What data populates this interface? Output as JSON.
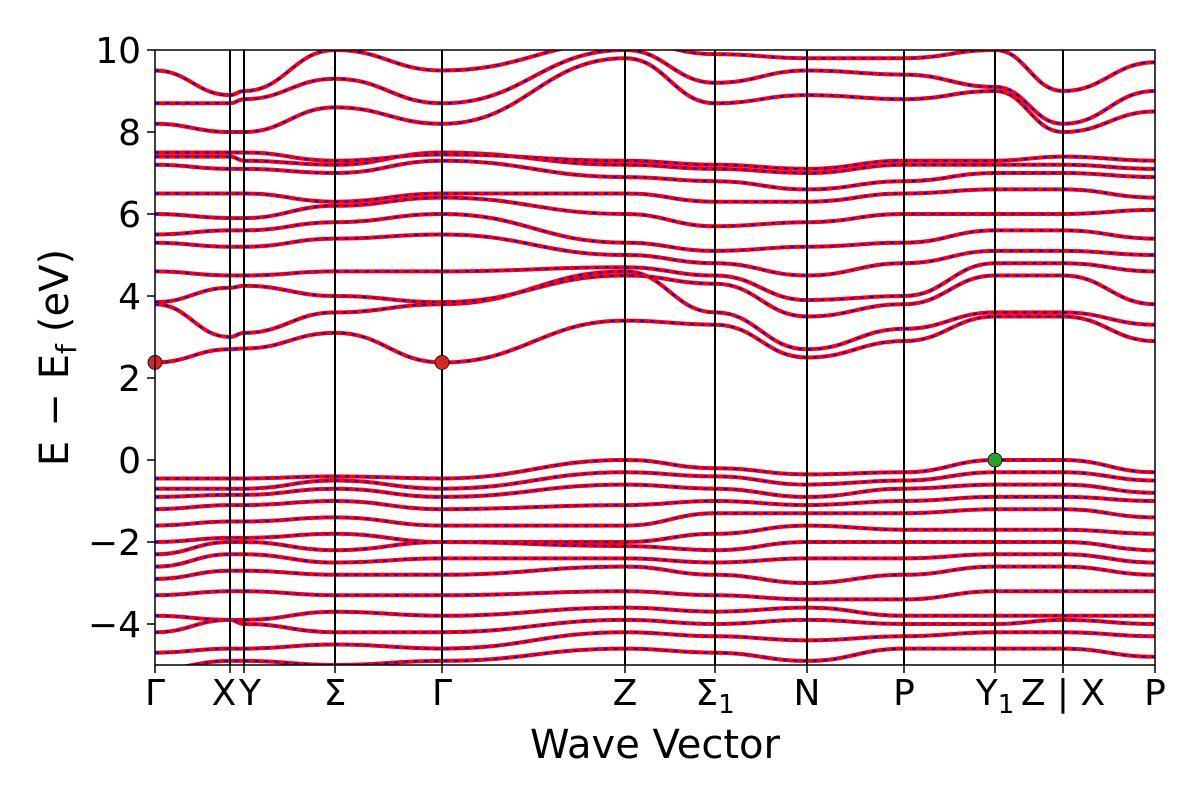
{
  "chart_data": {
    "type": "line",
    "title": "",
    "xlabel": "Wave Vector",
    "ylabel": "E − E_f (eV)",
    "ylabel_parts": {
      "e": "E",
      "minus": "−",
      "ef": "E",
      "sub": "f",
      "unit": "(eV)"
    },
    "ylim": [
      -5,
      10
    ],
    "yticks": [
      -4,
      -2,
      0,
      2,
      4,
      6,
      8,
      10
    ],
    "ytick_labels": [
      "−4",
      "−2",
      "0",
      "2",
      "4",
      "6",
      "8",
      "10"
    ],
    "kpoint_labels": [
      "Γ",
      "X",
      "Y",
      "Σ",
      "Γ",
      "Z",
      "Σ",
      "N",
      "P",
      "Y",
      "Z | X",
      "P"
    ],
    "kpoint_subscripts": [
      "",
      "",
      "",
      "",
      "",
      "",
      "1",
      "",
      "",
      "1",
      "",
      ""
    ],
    "kpoint_positions": [
      0.0,
      0.075,
      0.089,
      0.18,
      0.287,
      0.47,
      0.56,
      0.652,
      0.749,
      0.84,
      0.908,
      1.0
    ],
    "x_range": [
      0,
      1
    ],
    "grid": false,
    "band_colors": {
      "up": "#ff0000",
      "down": "#0000ff",
      "markers": {
        "cbm": "#d62728",
        "vbm": "#2ca02c"
      }
    },
    "markers": [
      {
        "name": "CBM",
        "x": 0.0,
        "y": 2.38,
        "color": "#d62728"
      },
      {
        "name": "CBM",
        "x": 0.287,
        "y": 2.38,
        "color": "#d62728"
      },
      {
        "name": "VBM",
        "x": 0.84,
        "y": 0.0,
        "color": "#2ca02c"
      }
    ],
    "series": [
      {
        "values_at_kpoints": [
          2.38,
          2.7,
          2.72,
          3.1,
          2.38,
          3.4,
          3.3,
          2.5,
          2.9,
          3.5,
          3.5,
          2.9
        ]
      },
      {
        "values_at_kpoints": [
          3.8,
          3.0,
          3.1,
          3.6,
          3.8,
          4.6,
          3.6,
          2.7,
          3.2,
          3.6,
          3.6,
          3.3
        ]
      },
      {
        "values_at_kpoints": [
          3.85,
          4.2,
          4.25,
          4.0,
          3.85,
          4.5,
          4.3,
          3.5,
          3.8,
          4.5,
          4.5,
          3.8
        ]
      },
      {
        "values_at_kpoints": [
          4.6,
          4.5,
          4.5,
          4.6,
          4.6,
          4.7,
          4.5,
          3.9,
          4.0,
          4.8,
          4.8,
          4.6
        ]
      },
      {
        "values_at_kpoints": [
          5.3,
          5.2,
          5.2,
          5.4,
          5.5,
          5.0,
          4.8,
          4.5,
          4.8,
          5.1,
          5.1,
          5.0
        ]
      },
      {
        "values_at_kpoints": [
          5.5,
          5.6,
          5.6,
          5.8,
          6.0,
          5.3,
          5.1,
          5.2,
          5.3,
          5.6,
          5.6,
          5.4
        ]
      },
      {
        "values_at_kpoints": [
          6.0,
          5.9,
          5.9,
          6.2,
          6.4,
          6.0,
          5.7,
          5.8,
          6.0,
          6.0,
          6.0,
          6.1
        ]
      },
      {
        "values_at_kpoints": [
          6.5,
          6.5,
          6.5,
          6.3,
          6.5,
          6.5,
          6.3,
          6.3,
          6.5,
          6.6,
          6.6,
          6.4
        ]
      },
      {
        "values_at_kpoints": [
          7.2,
          7.1,
          7.1,
          7.0,
          7.3,
          6.9,
          6.8,
          6.6,
          6.8,
          7.0,
          7.0,
          6.9
        ]
      },
      {
        "values_at_kpoints": [
          7.4,
          7.4,
          7.3,
          7.2,
          7.5,
          7.2,
          7.1,
          7.0,
          7.2,
          7.2,
          7.2,
          7.1
        ]
      },
      {
        "values_at_kpoints": [
          7.5,
          7.5,
          7.5,
          7.3,
          7.45,
          7.3,
          7.2,
          7.1,
          7.3,
          7.3,
          7.4,
          7.3
        ]
      },
      {
        "values_at_kpoints": [
          8.2,
          8.0,
          8.0,
          8.6,
          8.2,
          9.8,
          8.7,
          8.9,
          8.8,
          9.0,
          8.0,
          8.5
        ]
      },
      {
        "values_at_kpoints": [
          8.7,
          8.7,
          8.8,
          9.3,
          8.7,
          10.0,
          9.2,
          9.5,
          9.4,
          9.1,
          8.2,
          9.0
        ]
      },
      {
        "values_at_kpoints": [
          9.5,
          8.9,
          9.0,
          10.0,
          9.5,
          10.2,
          9.9,
          9.8,
          9.8,
          10.0,
          9.0,
          9.7
        ]
      },
      {
        "values_at_kpoints": [
          -0.45,
          -0.45,
          -0.45,
          -0.4,
          -0.45,
          0.0,
          -0.2,
          -0.35,
          -0.3,
          0.0,
          0.0,
          -0.3
        ]
      },
      {
        "values_at_kpoints": [
          -0.7,
          -0.7,
          -0.7,
          -0.5,
          -0.7,
          -0.3,
          -0.4,
          -0.6,
          -0.5,
          -0.3,
          -0.3,
          -0.5
        ]
      },
      {
        "values_at_kpoints": [
          -0.9,
          -0.85,
          -0.85,
          -0.7,
          -0.9,
          -0.6,
          -0.7,
          -0.9,
          -0.7,
          -0.6,
          -0.6,
          -0.8
        ]
      },
      {
        "values_at_kpoints": [
          -1.2,
          -1.1,
          -1.1,
          -1.0,
          -1.2,
          -1.1,
          -1.0,
          -1.1,
          -1.0,
          -0.9,
          -0.9,
          -1.0
        ]
      },
      {
        "values_at_kpoints": [
          -1.6,
          -1.5,
          -1.5,
          -1.4,
          -1.6,
          -1.6,
          -1.3,
          -1.3,
          -1.3,
          -1.2,
          -1.2,
          -1.4
        ]
      },
      {
        "values_at_kpoints": [
          -2.0,
          -1.9,
          -1.9,
          -1.8,
          -2.0,
          -2.0,
          -1.8,
          -1.6,
          -1.7,
          -1.7,
          -1.7,
          -1.8
        ]
      },
      {
        "values_at_kpoints": [
          -2.3,
          -2.0,
          -2.0,
          -2.2,
          -2.0,
          -2.1,
          -2.2,
          -2.0,
          -2.0,
          -2.0,
          -2.0,
          -2.2
        ]
      },
      {
        "values_at_kpoints": [
          -2.6,
          -2.3,
          -2.3,
          -2.5,
          -2.4,
          -2.4,
          -2.5,
          -2.4,
          -2.4,
          -2.3,
          -2.3,
          -2.5
        ]
      },
      {
        "values_at_kpoints": [
          -2.9,
          -2.7,
          -2.7,
          -2.8,
          -2.8,
          -2.6,
          -2.8,
          -3.0,
          -2.8,
          -2.6,
          -2.6,
          -2.8
        ]
      },
      {
        "values_at_kpoints": [
          -3.3,
          -3.2,
          -3.2,
          -3.3,
          -3.3,
          -3.2,
          -3.3,
          -3.4,
          -3.4,
          -3.2,
          -3.2,
          -3.2
        ]
      },
      {
        "values_at_kpoints": [
          -3.8,
          -3.9,
          -3.9,
          -3.7,
          -3.8,
          -3.6,
          -3.7,
          -3.6,
          -3.8,
          -3.8,
          -3.8,
          -3.8
        ]
      },
      {
        "values_at_kpoints": [
          -4.2,
          -3.9,
          -4.0,
          -4.2,
          -4.2,
          -3.9,
          -4.0,
          -3.9,
          -4.0,
          -4.0,
          -3.9,
          -4.0
        ]
      },
      {
        "values_at_kpoints": [
          -4.7,
          -4.6,
          -4.6,
          -4.5,
          -4.6,
          -4.2,
          -4.3,
          -4.4,
          -4.3,
          -4.2,
          -4.2,
          -4.3
        ]
      },
      {
        "values_at_kpoints": [
          -5.1,
          -4.9,
          -4.9,
          -5.0,
          -4.9,
          -4.6,
          -4.7,
          -4.9,
          -4.6,
          -4.6,
          -4.6,
          -4.8
        ]
      }
    ]
  }
}
